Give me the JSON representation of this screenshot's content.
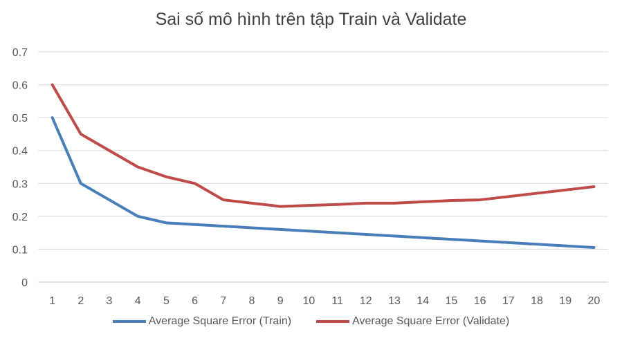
{
  "chart_data": {
    "type": "line",
    "title": "Sai số mô hình trên tập Train và Validate",
    "x": [
      1,
      2,
      3,
      4,
      5,
      6,
      7,
      8,
      9,
      10,
      11,
      12,
      13,
      14,
      15,
      16,
      17,
      18,
      19,
      20
    ],
    "series": [
      {
        "name": "Average Square Error (Train)",
        "color": "#4a7ebb",
        "values": [
          0.5,
          0.3,
          0.25,
          0.2,
          0.18,
          0.175,
          0.17,
          0.165,
          0.16,
          0.155,
          0.15,
          0.145,
          0.14,
          0.135,
          0.13,
          0.125,
          0.12,
          0.115,
          0.11,
          0.105
        ]
      },
      {
        "name": "Average Square Error (Validate)",
        "color": "#be4b48",
        "values": [
          0.6,
          0.45,
          0.4,
          0.35,
          0.32,
          0.3,
          0.25,
          0.24,
          0.23,
          0.233,
          0.236,
          0.24,
          0.24,
          0.244,
          0.248,
          0.25,
          0.26,
          0.27,
          0.28,
          0.29
        ]
      }
    ],
    "ylim": [
      0,
      0.7
    ],
    "yticks": [
      0,
      0.1,
      0.2,
      0.3,
      0.4,
      0.5,
      0.6,
      0.7
    ],
    "ytick_labels": [
      "0",
      "0.1",
      "0.2",
      "0.3",
      "0.4",
      "0.5",
      "0.6",
      "0.7"
    ],
    "grid": true,
    "legend": "bottom",
    "xlabel": "",
    "ylabel": ""
  }
}
